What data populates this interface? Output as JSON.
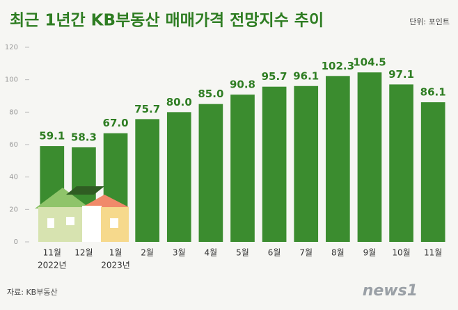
{
  "chart_data": {
    "type": "bar",
    "title": "최근 1년간 KB부동산 매매가격 전망지수 추이",
    "unit": "단위: 포인트",
    "source": "자료: KB부동산",
    "logo": "news1",
    "categories": [
      "11월",
      "12월",
      "1월",
      "2월",
      "3월",
      "4월",
      "5월",
      "6월",
      "7월",
      "8월",
      "9월",
      "10월",
      "11월"
    ],
    "year_labels": [
      "2022년",
      null,
      "2023년",
      null,
      null,
      null,
      null,
      null,
      null,
      null,
      null,
      null,
      null
    ],
    "values": [
      59.1,
      58.3,
      67.0,
      75.7,
      80.0,
      85.0,
      90.8,
      95.7,
      96.1,
      102.3,
      104.5,
      97.1,
      86.1
    ],
    "value_labels": [
      "59.1",
      "58.3",
      "67.0",
      "75.7",
      "80.0",
      "85.0",
      "90.8",
      "95.7",
      "96.1",
      "102.3",
      "104.5",
      "97.1",
      "86.1"
    ],
    "color": "#3b8c2f",
    "ylim": [
      0,
      120
    ],
    "yticks": [
      0,
      20,
      40,
      60,
      80,
      100,
      120
    ]
  }
}
